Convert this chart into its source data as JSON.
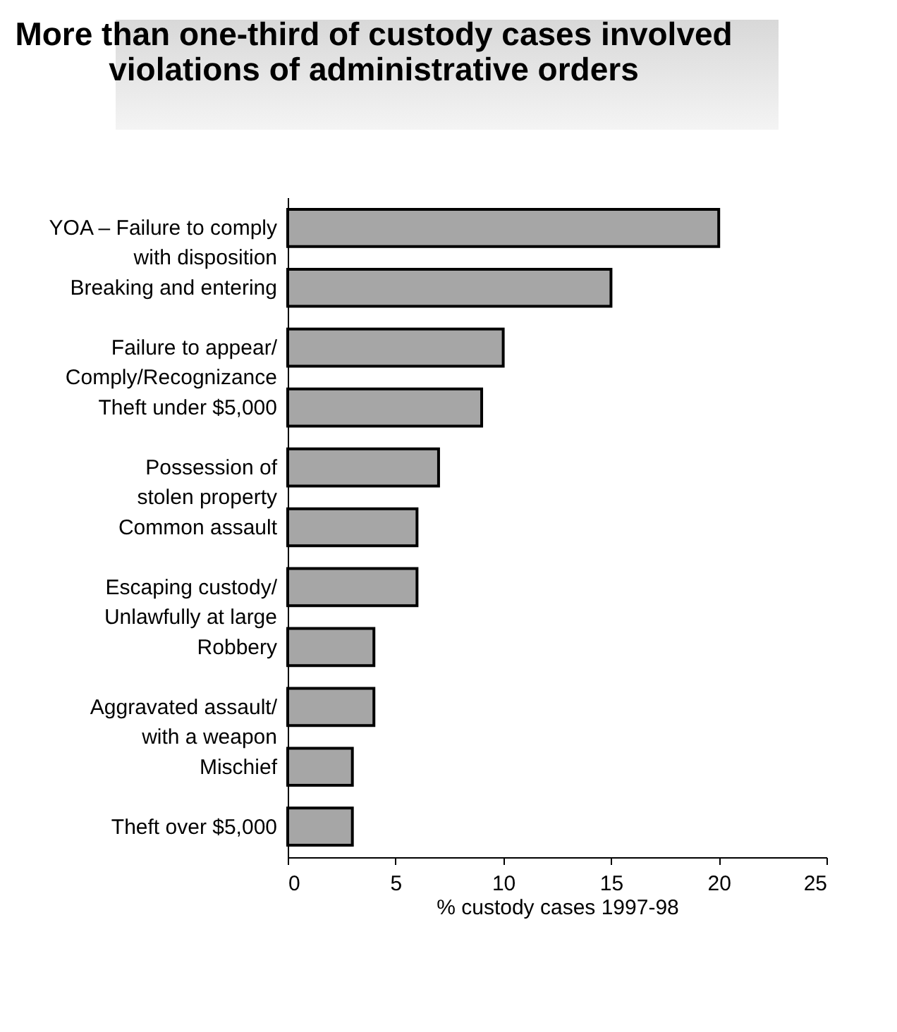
{
  "chart_data": {
    "type": "bar",
    "orientation": "horizontal",
    "title": [
      "More than one-third of custody cases involved",
      "violations of administrative orders"
    ],
    "xlabel": "% custody cases 1997-98",
    "categories": [
      "YOA – Failure to comply\nwith disposition",
      "Breaking and entering",
      "Failure to appear/\nComply/Recognizance",
      "Theft under $5,000",
      "Possession of\nstolen property",
      "Common assault",
      "Escaping custody/\nUnlawfully at large",
      "Robbery",
      "Aggravated assault/\nwith a weapon",
      "Mischief",
      "Theft over $5,000"
    ],
    "values": [
      20,
      15,
      10,
      9,
      7,
      6,
      6,
      4,
      4,
      3,
      3
    ],
    "color": "#a6a6a6",
    "xlim": [
      0,
      25
    ],
    "xticks": [
      0,
      5,
      10,
      15,
      20,
      25
    ],
    "grid": false
  }
}
